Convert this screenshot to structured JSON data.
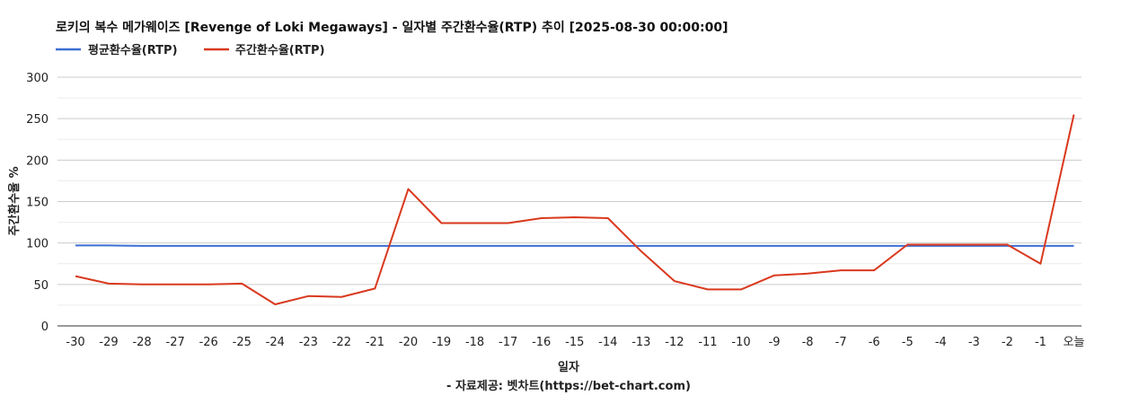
{
  "chart_data": {
    "type": "line",
    "title": "로키의 복수 메가웨이즈 [Revenge of Loki Megaways] - 일자별 주간환수율(RTP) 추이 [2025-08-30 00:00:00]",
    "xlabel": "일자",
    "ylabel": "주간환수율 %",
    "source": "- 자료제공: 벳차트(https://bet-chart.com)",
    "categories": [
      "-30",
      "-29",
      "-28",
      "-27",
      "-26",
      "-25",
      "-24",
      "-23",
      "-22",
      "-21",
      "-20",
      "-19",
      "-18",
      "-17",
      "-16",
      "-15",
      "-14",
      "-13",
      "-12",
      "-11",
      "-10",
      "-9",
      "-8",
      "-7",
      "-6",
      "-5",
      "-4",
      "-3",
      "-2",
      "-1",
      "오늘"
    ],
    "ylim": [
      0,
      300
    ],
    "yticks": [
      0,
      50,
      100,
      150,
      200,
      250,
      300
    ],
    "grid": true,
    "legend": "top-left",
    "series": [
      {
        "name": "평균환수율(RTP)",
        "color": "#3b6fd4",
        "values": [
          97,
          97,
          96.5,
          96.5,
          96.5,
          96.5,
          96.5,
          96.5,
          96.5,
          96.5,
          96.5,
          96.5,
          96.5,
          96.5,
          96.5,
          96.5,
          96.5,
          96.5,
          96.5,
          96.5,
          96.5,
          96.5,
          96.5,
          96.5,
          96.5,
          96.5,
          96.5,
          96.5,
          96.5,
          96.5,
          96.5
        ]
      },
      {
        "name": "주간환수율(RTP)",
        "color": "#d9391e",
        "values": [
          60,
          51,
          50,
          50,
          50,
          51,
          26,
          36,
          35,
          45,
          165,
          124,
          124,
          124,
          130,
          131,
          130,
          90,
          54,
          44,
          44,
          61,
          63,
          67,
          67,
          98,
          98,
          98,
          98,
          75,
          255
        ]
      }
    ]
  }
}
